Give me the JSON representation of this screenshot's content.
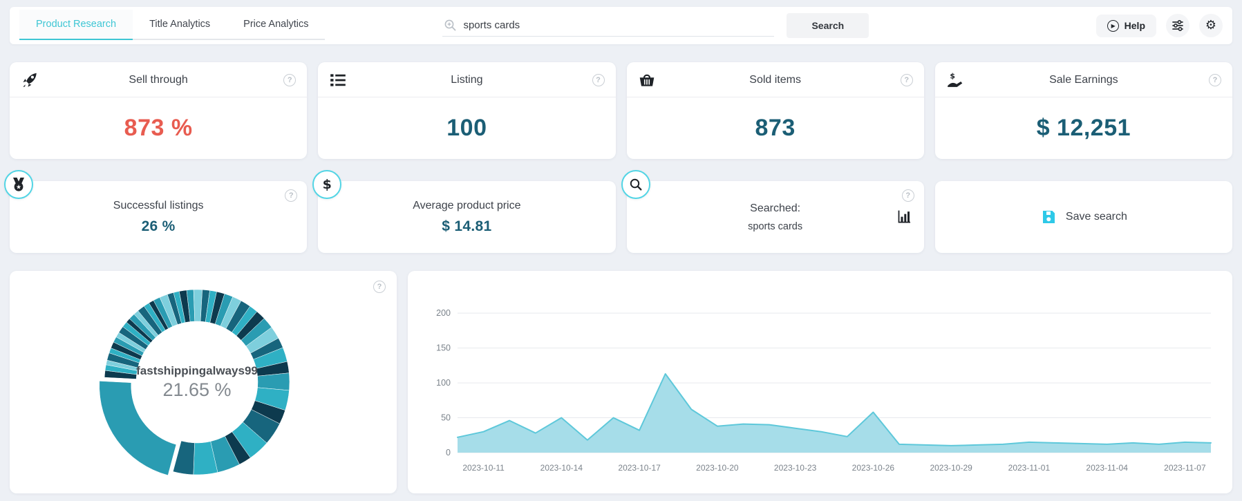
{
  "header": {
    "tabs": [
      {
        "label": "Product Research",
        "active": true
      },
      {
        "label": "Title Analytics",
        "active": false
      },
      {
        "label": "Price Analytics",
        "active": false
      }
    ],
    "search_value": "sports cards",
    "search_button": "Search",
    "help_label": "Help"
  },
  "theme": {
    "accent_teal": "#3ec6d4",
    "value_teal": "#1b5e75",
    "value_red": "#e85c50",
    "save_icon_teal": "#2ec9e8",
    "badge_border": "#52d5e5",
    "area_fill": "#a6dde9",
    "area_line": "#5ec8da"
  },
  "stats_row1": [
    {
      "icon": "rocket-icon",
      "title": "Sell through",
      "value": "873 %",
      "value_color": "#e85c50"
    },
    {
      "icon": "list-icon",
      "title": "Listing",
      "value": "100",
      "value_color": "#1b5e75"
    },
    {
      "icon": "basket-icon",
      "title": "Sold items",
      "value": "873",
      "value_color": "#1b5e75"
    },
    {
      "icon": "hand-dollar-icon",
      "title": "Sale Earnings",
      "value": "$ 12,251",
      "value_color": "#1b5e75"
    }
  ],
  "stats_row2": {
    "successful": {
      "title": "Successful listings",
      "value": "26 %"
    },
    "avg_price": {
      "title": "Average product price",
      "value": "$ 14.81"
    },
    "searched": {
      "title": "Searched:",
      "value": "sports cards"
    },
    "save": {
      "label": "Save search"
    }
  },
  "chart_data": [
    {
      "type": "pie",
      "subtype": "donut",
      "center_label": "fastshippingalways99",
      "center_value": "21.65 %",
      "start_angle": 195,
      "explode_offset": 9,
      "segments": [
        {
          "p": 21.65,
          "c": "#2a9cb2",
          "exploded": true,
          "label": "fastshippingalways99"
        },
        {
          "p": 1.2,
          "c": "#0d3a4e"
        },
        {
          "p": 1.0,
          "c": "#2fb0c4"
        },
        {
          "p": 0.8,
          "c": "#7ecfdd"
        },
        {
          "p": 1.3,
          "c": "#17657d"
        },
        {
          "p": 0.9,
          "c": "#2fb0c4"
        },
        {
          "p": 1.1,
          "c": "#0d3a4e"
        },
        {
          "p": 1.0,
          "c": "#2a9cb2"
        },
        {
          "p": 0.9,
          "c": "#7ecfdd"
        },
        {
          "p": 1.2,
          "c": "#17657d"
        },
        {
          "p": 1.0,
          "c": "#2fb0c4"
        },
        {
          "p": 0.8,
          "c": "#0d3a4e"
        },
        {
          "p": 1.1,
          "c": "#2a9cb2"
        },
        {
          "p": 0.9,
          "c": "#7ecfdd"
        },
        {
          "p": 1.3,
          "c": "#17657d"
        },
        {
          "p": 1.0,
          "c": "#2fb0c4"
        },
        {
          "p": 0.9,
          "c": "#0d3a4e"
        },
        {
          "p": 1.2,
          "c": "#2a9cb2"
        },
        {
          "p": 1.4,
          "c": "#7ecfdd"
        },
        {
          "p": 1.1,
          "c": "#17657d"
        },
        {
          "p": 1.0,
          "c": "#2fb0c4"
        },
        {
          "p": 1.3,
          "c": "#0d3a4e"
        },
        {
          "p": 1.2,
          "c": "#2a9cb2"
        },
        {
          "p": 1.5,
          "c": "#7ecfdd"
        },
        {
          "p": 1.3,
          "c": "#17657d"
        },
        {
          "p": 1.2,
          "c": "#2fb0c4"
        },
        {
          "p": 1.4,
          "c": "#0d3a4e"
        },
        {
          "p": 1.5,
          "c": "#2a9cb2"
        },
        {
          "p": 1.6,
          "c": "#7ecfdd"
        },
        {
          "p": 1.8,
          "c": "#17657d"
        },
        {
          "p": 1.5,
          "c": "#2fb0c4"
        },
        {
          "p": 1.7,
          "c": "#0d3a4e"
        },
        {
          "p": 2.0,
          "c": "#2a9cb2"
        },
        {
          "p": 2.2,
          "c": "#7ecfdd"
        },
        {
          "p": 1.8,
          "c": "#17657d"
        },
        {
          "p": 2.5,
          "c": "#2fb0c4"
        },
        {
          "p": 2.0,
          "c": "#0d3a4e"
        },
        {
          "p": 3.0,
          "c": "#2a9cb2"
        },
        {
          "p": 3.5,
          "c": "#2fb0c4"
        },
        {
          "p": 2.5,
          "c": "#0d3a4e"
        },
        {
          "p": 4.0,
          "c": "#17657d"
        },
        {
          "p": 3.8,
          "c": "#2fb0c4"
        },
        {
          "p": 2.2,
          "c": "#0d3a4e"
        },
        {
          "p": 4.0,
          "c": "#2a9cb2"
        },
        {
          "p": 4.2,
          "c": "#2fb0c4"
        },
        {
          "p": 3.55,
          "c": "#17657d"
        }
      ]
    },
    {
      "type": "area",
      "x": [
        "2023-10-10",
        "2023-10-11",
        "2023-10-12",
        "2023-10-13",
        "2023-10-14",
        "2023-10-15",
        "2023-10-16",
        "2023-10-17",
        "2023-10-18",
        "2023-10-19",
        "2023-10-20",
        "2023-10-21",
        "2023-10-22",
        "2023-10-23",
        "2023-10-24",
        "2023-10-25",
        "2023-10-26",
        "2023-10-27",
        "2023-10-28",
        "2023-10-29",
        "2023-10-30",
        "2023-10-31",
        "2023-11-01",
        "2023-11-02",
        "2023-11-03",
        "2023-11-04",
        "2023-11-05",
        "2023-11-06",
        "2023-11-07",
        "2023-11-08"
      ],
      "values": [
        22,
        30,
        46,
        28,
        50,
        18,
        50,
        32,
        113,
        62,
        38,
        41,
        40,
        35,
        30,
        23,
        58,
        12,
        11,
        10,
        11,
        12,
        15,
        14,
        13,
        12,
        14,
        12,
        15,
        14
      ],
      "xtick_indices": [
        1,
        4,
        7,
        10,
        13,
        16,
        19,
        22,
        25,
        28
      ],
      "xtick_labels": [
        "2023-10-11",
        "2023-10-14",
        "2023-10-17",
        "2023-10-20",
        "2023-10-23",
        "2023-10-26",
        "2023-10-29",
        "2023-11-01",
        "2023-11-04",
        "2023-11-07"
      ],
      "yticks": [
        0,
        50,
        100,
        150,
        200
      ],
      "ylim": [
        0,
        220
      ],
      "grid": true,
      "legend": "none",
      "fill_color": "#a6dde9",
      "line_color": "#5ec8da"
    }
  ]
}
